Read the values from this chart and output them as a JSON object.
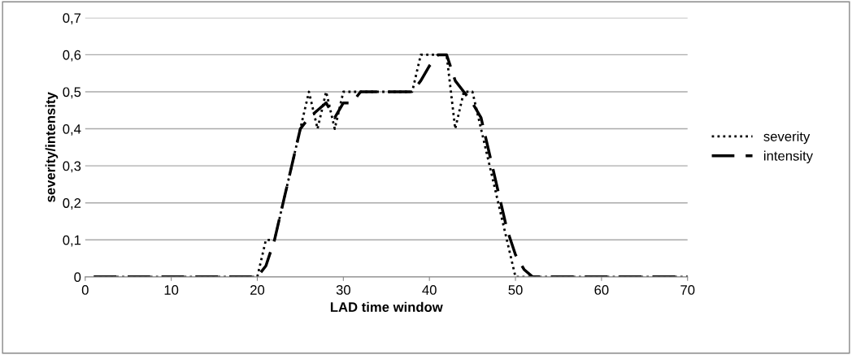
{
  "chart_data": {
    "type": "line",
    "xlabel": "LAD time window",
    "ylabel": "severity/intensity",
    "xlim": [
      0,
      70
    ],
    "xticks": [
      0,
      10,
      20,
      30,
      40,
      50,
      60,
      70
    ],
    "ylim": [
      0,
      0.7
    ],
    "yticks": [
      {
        "value": 0,
        "label": "0"
      },
      {
        "value": 0.1,
        "label": "0,1"
      },
      {
        "value": 0.2,
        "label": "0,2"
      },
      {
        "value": 0.3,
        "label": "0,3"
      },
      {
        "value": 0.4,
        "label": "0,4"
      },
      {
        "value": 0.5,
        "label": "0,5"
      },
      {
        "value": 0.6,
        "label": "0,6"
      },
      {
        "value": 0.7,
        "label": "0,7"
      }
    ],
    "grid": "y",
    "legend": "right",
    "marker": "none",
    "x": [
      1,
      2,
      3,
      4,
      5,
      6,
      7,
      8,
      9,
      10,
      11,
      12,
      13,
      14,
      15,
      16,
      17,
      18,
      19,
      20,
      21,
      22,
      23,
      24,
      25,
      26,
      27,
      28,
      29,
      30,
      31,
      32,
      33,
      34,
      35,
      36,
      37,
      38,
      39,
      40,
      41,
      42,
      43,
      44,
      45,
      46,
      47,
      48,
      49,
      50,
      51,
      52,
      53,
      54,
      55,
      56,
      57,
      58,
      59,
      60,
      61,
      62,
      63,
      64,
      65,
      66,
      67,
      68,
      69,
      70
    ],
    "series": [
      {
        "name": "severity",
        "color": "#000000",
        "line_style": "dotted",
        "values": [
          0,
          0,
          0,
          0,
          0,
          0,
          0,
          0,
          0,
          0,
          0,
          0,
          0,
          0,
          0,
          0,
          0,
          0,
          0,
          0,
          0.1,
          0.1,
          0.2,
          0.3,
          0.4,
          0.5,
          0.4,
          0.5,
          0.4,
          0.5,
          0.5,
          0.5,
          0.5,
          0.5,
          0.5,
          0.5,
          0.5,
          0.5,
          0.6,
          0.6,
          0.6,
          0.6,
          0.4,
          0.5,
          0.5,
          0.4,
          0.3,
          0.2,
          0.1,
          0,
          0,
          0,
          0,
          0,
          0,
          0,
          0,
          0,
          0,
          0,
          0,
          0,
          0,
          0,
          0,
          0,
          0,
          0,
          0,
          0
        ]
      },
      {
        "name": "intensity",
        "color": "#000000",
        "line_style": "dashed",
        "values": [
          0,
          0,
          0,
          0,
          0,
          0,
          0,
          0,
          0,
          0,
          0,
          0,
          0,
          0,
          0,
          0,
          0,
          0,
          0,
          0,
          0.03,
          0.1,
          0.2,
          0.3,
          0.4,
          0.43,
          0.45,
          0.47,
          0.43,
          0.47,
          0.47,
          0.5,
          0.5,
          0.5,
          0.5,
          0.5,
          0.5,
          0.5,
          0.53,
          0.57,
          0.6,
          0.6,
          0.53,
          0.5,
          0.47,
          0.43,
          0.33,
          0.23,
          0.13,
          0.06,
          0.02,
          0,
          0,
          0,
          0,
          0,
          0,
          0,
          0,
          0,
          0,
          0,
          0,
          0,
          0,
          0,
          0,
          0,
          0,
          0
        ]
      }
    ]
  }
}
